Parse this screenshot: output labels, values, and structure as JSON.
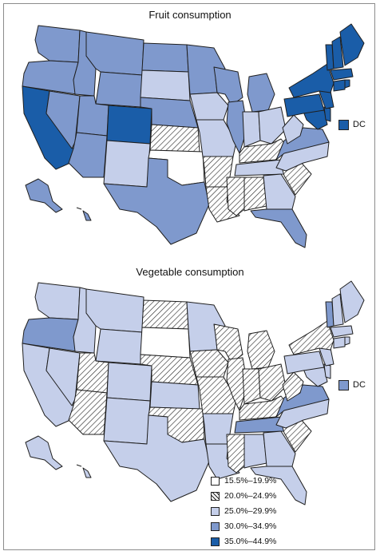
{
  "maps": [
    {
      "title": "Fruit consumption",
      "dc_label": "DC",
      "dc_class": 4,
      "states": {
        "WA": 3,
        "OR": 3,
        "CA": 4,
        "NV": 3,
        "ID": 3,
        "MT": 3,
        "WY": 3,
        "UT": 3,
        "AZ": 3,
        "CO": 4,
        "NM": 2,
        "ND": 3,
        "SD": 2,
        "NE": 3,
        "KS": 1,
        "OK": 0,
        "TX": 3,
        "MN": 3,
        "IA": 2,
        "MO": 2,
        "AR": 1,
        "LA": 1,
        "WI": 3,
        "IL": 3,
        "MI": 3,
        "IN": 2,
        "OH": 2,
        "KY": 1,
        "TN": 2,
        "MS": 1,
        "AL": 1,
        "GA": 2,
        "FL": 3,
        "SC": 1,
        "NC": 2,
        "VA": 3,
        "WV": 2,
        "MD": 4,
        "DE": 4,
        "PA": 4,
        "NJ": 4,
        "NY": 4,
        "CT": 4,
        "RI": 4,
        "MA": 4,
        "VT": 4,
        "NH": 4,
        "ME": 4,
        "AK": 3,
        "HI": 3
      }
    },
    {
      "title": "Vegetable consumption",
      "dc_label": "DC",
      "dc_class": 3,
      "states": {
        "WA": 2,
        "OR": 3,
        "CA": 2,
        "NV": 2,
        "ID": 2,
        "MT": 2,
        "WY": 2,
        "UT": 1,
        "AZ": 1,
        "CO": 2,
        "NM": 2,
        "ND": 1,
        "SD": 0,
        "NE": 1,
        "KS": 2,
        "OK": 1,
        "TX": 2,
        "MN": 2,
        "IA": 1,
        "MO": 1,
        "AR": 2,
        "LA": 2,
        "WI": 1,
        "IL": 1,
        "MI": 1,
        "IN": 1,
        "OH": 1,
        "KY": 1,
        "TN": 3,
        "MS": 1,
        "AL": 2,
        "GA": 2,
        "FL": 2,
        "SC": 1,
        "NC": 2,
        "VA": 3,
        "WV": 1,
        "MD": 2,
        "DE": 2,
        "PA": 2,
        "NJ": 2,
        "NY": 1,
        "CT": 2,
        "RI": 2,
        "MA": 2,
        "VT": 3,
        "NH": 2,
        "ME": 2,
        "AK": 2,
        "HI": 2
      }
    }
  ],
  "legend": [
    {
      "label": "15.5%–19.9%",
      "fill": "#ffffff"
    },
    {
      "label": "20.0%–24.9%",
      "fill": "hatch"
    },
    {
      "label": "25.0%–29.9%",
      "fill": "#c5cfea"
    },
    {
      "label": "30.0%–34.9%",
      "fill": "#7f99cd"
    },
    {
      "label": "35.0%–44.9%",
      "fill": "#1a5da8"
    }
  ],
  "colors": {
    "class0": "#ffffff",
    "class1": "hatch",
    "class2": "#c5cfea",
    "class3": "#7f99cd",
    "class4": "#1a5da8"
  }
}
